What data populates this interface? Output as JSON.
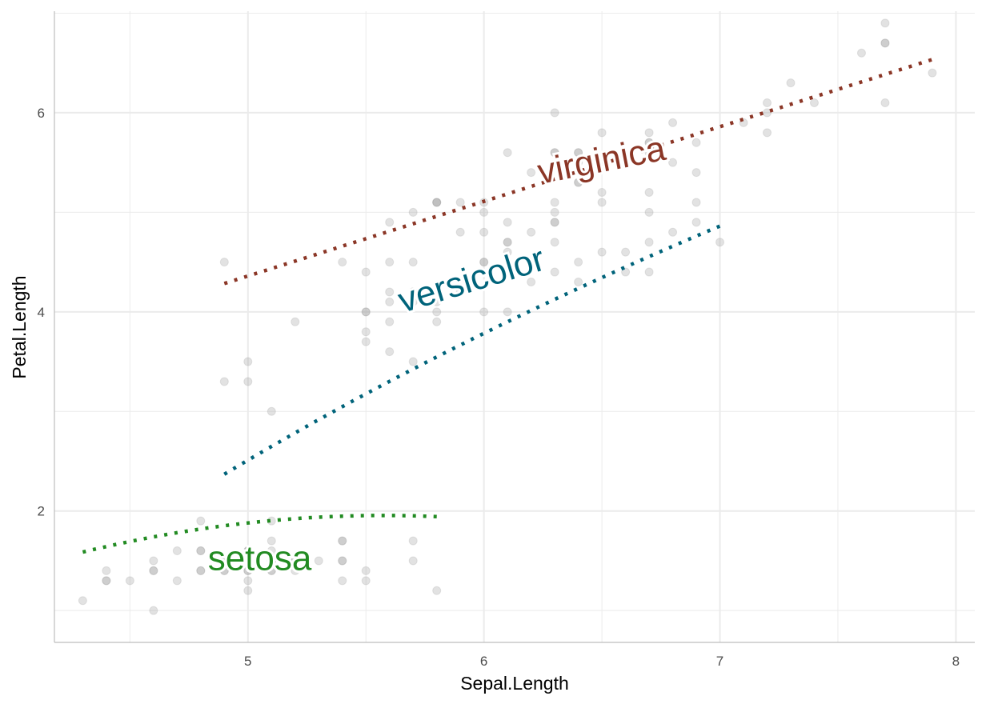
{
  "chart_data": {
    "type": "scatter",
    "title": "",
    "xlabel": "Sepal.Length",
    "ylabel": "Petal.Length",
    "xlim": [
      4.18,
      8.08
    ],
    "ylim": [
      0.68,
      7.02
    ],
    "x_ticks": [
      5,
      6,
      7,
      8
    ],
    "y_ticks": [
      2,
      4,
      6
    ],
    "x_ticks_text": [
      "5",
      "6",
      "7",
      "8"
    ],
    "y_ticks_text": [
      "2",
      "4",
      "6"
    ],
    "grid": true,
    "legend": "none",
    "colors": {
      "point": "#9e9e9e",
      "grid": "#ebebeb",
      "axis": "#bdbdbd",
      "setosa": "#228b22",
      "versicolor": "#00637a",
      "virginica": "#8b3626"
    },
    "points": [
      [
        5.1,
        1.4
      ],
      [
        4.9,
        1.4
      ],
      [
        4.7,
        1.3
      ],
      [
        4.6,
        1.5
      ],
      [
        5.0,
        1.4
      ],
      [
        5.4,
        1.7
      ],
      [
        4.6,
        1.4
      ],
      [
        5.0,
        1.5
      ],
      [
        4.4,
        1.4
      ],
      [
        4.9,
        1.5
      ],
      [
        5.4,
        1.5
      ],
      [
        4.8,
        1.6
      ],
      [
        4.8,
        1.4
      ],
      [
        4.3,
        1.1
      ],
      [
        5.8,
        1.2
      ],
      [
        5.7,
        1.5
      ],
      [
        5.4,
        1.3
      ],
      [
        5.1,
        1.4
      ],
      [
        5.7,
        1.7
      ],
      [
        5.1,
        1.5
      ],
      [
        5.4,
        1.7
      ],
      [
        5.1,
        1.5
      ],
      [
        4.6,
        1.0
      ],
      [
        5.1,
        1.7
      ],
      [
        4.8,
        1.9
      ],
      [
        5.0,
        1.6
      ],
      [
        5.0,
        1.6
      ],
      [
        5.2,
        1.5
      ],
      [
        5.2,
        1.4
      ],
      [
        4.7,
        1.6
      ],
      [
        4.8,
        1.6
      ],
      [
        5.4,
        1.5
      ],
      [
        5.2,
        1.5
      ],
      [
        5.5,
        1.4
      ],
      [
        4.9,
        1.5
      ],
      [
        5.0,
        1.2
      ],
      [
        5.5,
        1.3
      ],
      [
        4.9,
        1.4
      ],
      [
        4.4,
        1.3
      ],
      [
        5.1,
        1.5
      ],
      [
        5.0,
        1.3
      ],
      [
        4.5,
        1.3
      ],
      [
        4.4,
        1.3
      ],
      [
        5.0,
        1.6
      ],
      [
        5.1,
        1.9
      ],
      [
        4.8,
        1.4
      ],
      [
        5.1,
        1.6
      ],
      [
        4.6,
        1.4
      ],
      [
        5.3,
        1.5
      ],
      [
        5.0,
        1.4
      ],
      [
        7.0,
        4.7
      ],
      [
        6.4,
        4.5
      ],
      [
        6.9,
        4.9
      ],
      [
        5.5,
        4.0
      ],
      [
        6.5,
        4.6
      ],
      [
        5.7,
        4.5
      ],
      [
        6.3,
        4.7
      ],
      [
        4.9,
        3.3
      ],
      [
        6.6,
        4.6
      ],
      [
        5.2,
        3.9
      ],
      [
        5.0,
        3.5
      ],
      [
        5.9,
        4.2
      ],
      [
        6.0,
        4.0
      ],
      [
        6.1,
        4.7
      ],
      [
        5.6,
        3.6
      ],
      [
        6.7,
        4.4
      ],
      [
        5.6,
        4.5
      ],
      [
        5.8,
        4.1
      ],
      [
        6.2,
        4.5
      ],
      [
        5.6,
        3.9
      ],
      [
        5.9,
        4.8
      ],
      [
        6.1,
        4.0
      ],
      [
        6.3,
        4.9
      ],
      [
        6.1,
        4.7
      ],
      [
        6.4,
        4.3
      ],
      [
        6.6,
        4.4
      ],
      [
        6.8,
        4.8
      ],
      [
        6.7,
        5.0
      ],
      [
        6.0,
        4.5
      ],
      [
        5.7,
        3.5
      ],
      [
        5.5,
        3.8
      ],
      [
        5.5,
        3.7
      ],
      [
        5.8,
        3.9
      ],
      [
        6.0,
        5.1
      ],
      [
        5.4,
        4.5
      ],
      [
        6.0,
        4.5
      ],
      [
        6.7,
        4.7
      ],
      [
        6.3,
        4.4
      ],
      [
        5.6,
        4.1
      ],
      [
        5.5,
        4.0
      ],
      [
        5.5,
        4.4
      ],
      [
        6.1,
        4.6
      ],
      [
        5.8,
        4.0
      ],
      [
        5.0,
        3.3
      ],
      [
        5.6,
        4.2
      ],
      [
        5.7,
        4.2
      ],
      [
        5.7,
        4.2
      ],
      [
        6.2,
        4.3
      ],
      [
        5.1,
        3.0
      ],
      [
        5.7,
        4.1
      ],
      [
        6.3,
        6.0
      ],
      [
        5.8,
        5.1
      ],
      [
        7.1,
        5.9
      ],
      [
        6.3,
        5.6
      ],
      [
        6.5,
        5.8
      ],
      [
        7.6,
        6.6
      ],
      [
        4.9,
        4.5
      ],
      [
        7.3,
        6.3
      ],
      [
        6.7,
        5.8
      ],
      [
        7.2,
        6.1
      ],
      [
        6.5,
        5.1
      ],
      [
        6.4,
        5.3
      ],
      [
        6.8,
        5.5
      ],
      [
        5.7,
        5.0
      ],
      [
        5.8,
        5.1
      ],
      [
        6.4,
        5.3
      ],
      [
        6.5,
        5.5
      ],
      [
        7.7,
        6.7
      ],
      [
        7.7,
        6.9
      ],
      [
        6.0,
        5.0
      ],
      [
        6.9,
        5.7
      ],
      [
        5.6,
        4.9
      ],
      [
        7.7,
        6.7
      ],
      [
        6.3,
        4.9
      ],
      [
        6.7,
        5.7
      ],
      [
        7.2,
        6.0
      ],
      [
        6.2,
        4.8
      ],
      [
        6.1,
        4.9
      ],
      [
        6.4,
        5.6
      ],
      [
        7.2,
        5.8
      ],
      [
        7.4,
        6.1
      ],
      [
        7.9,
        6.4
      ],
      [
        6.4,
        5.6
      ],
      [
        6.3,
        5.1
      ],
      [
        6.1,
        5.6
      ],
      [
        7.7,
        6.1
      ],
      [
        6.3,
        5.6
      ],
      [
        6.4,
        5.5
      ],
      [
        6.0,
        4.8
      ],
      [
        6.9,
        5.4
      ],
      [
        6.7,
        5.6
      ],
      [
        6.9,
        5.1
      ],
      [
        5.8,
        5.1
      ],
      [
        6.8,
        5.9
      ],
      [
        6.7,
        5.7
      ],
      [
        6.7,
        5.2
      ],
      [
        6.3,
        5.0
      ],
      [
        6.5,
        5.2
      ],
      [
        6.2,
        5.4
      ],
      [
        5.9,
        5.1
      ]
    ],
    "series": [
      {
        "name": "setosa",
        "color": "#228b22",
        "curve": "quadratic",
        "x_range": [
          4.3,
          5.8
        ],
        "coef": [
          -5.07,
          2.52,
          -0.226
        ],
        "label_at": [
          5.05,
          1.5
        ],
        "label_angle": 0
      },
      {
        "name": "versicolor",
        "color": "#00637a",
        "curve": "log",
        "x_range": [
          4.9,
          7.0
        ],
        "coef": [
          -8.74,
          6.99
        ],
        "label_at": [
          5.95,
          4.3
        ],
        "label_angle": -17
      },
      {
        "name": "virginica",
        "color": "#8b3626",
        "curve": "linear",
        "x_range": [
          4.9,
          7.9
        ],
        "coef": [
          0.61,
          0.75
        ],
        "label_at": [
          6.5,
          5.5
        ],
        "label_angle": -11
      }
    ]
  }
}
